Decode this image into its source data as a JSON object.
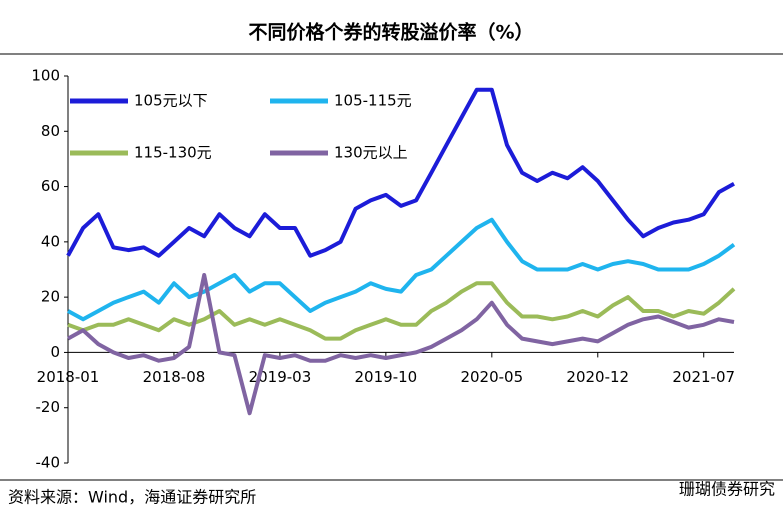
{
  "chart_data": {
    "type": "line",
    "title": "不同价格个券的转股溢价率（%）",
    "source": "资料来源：Wind，海通证券研究所",
    "watermark": "珊瑚债券研究",
    "categories": [
      "2018-01",
      null,
      null,
      null,
      null,
      null,
      null,
      "2018-08",
      null,
      null,
      null,
      null,
      null,
      null,
      "2019-03",
      null,
      null,
      null,
      null,
      null,
      null,
      "2019-10",
      null,
      null,
      null,
      null,
      null,
      null,
      "2020-05",
      null,
      null,
      null,
      null,
      null,
      null,
      "2020-12",
      null,
      null,
      null,
      null,
      null,
      null,
      "2021-07",
      null,
      null
    ],
    "series": [
      {
        "name": "105元以下",
        "color": "#1c1cd8",
        "values": [
          35,
          45,
          50,
          38,
          37,
          38,
          35,
          40,
          45,
          42,
          50,
          45,
          42,
          50,
          45,
          45,
          35,
          37,
          40,
          52,
          55,
          57,
          53,
          55,
          65,
          75,
          85,
          95,
          95,
          75,
          65,
          62,
          65,
          63,
          67,
          62,
          55,
          48,
          42,
          45,
          47,
          48,
          50,
          58,
          61
        ]
      },
      {
        "name": "105-115元",
        "color": "#1fb4ee",
        "values": [
          15,
          12,
          15,
          18,
          20,
          22,
          18,
          25,
          20,
          22,
          25,
          28,
          22,
          25,
          25,
          20,
          15,
          18,
          20,
          22,
          25,
          23,
          22,
          28,
          30,
          35,
          40,
          45,
          48,
          40,
          33,
          30,
          30,
          30,
          32,
          30,
          32,
          33,
          32,
          30,
          30,
          30,
          32,
          35,
          39
        ]
      },
      {
        "name": "115-130元",
        "color": "#9bbb59",
        "values": [
          10,
          8,
          10,
          10,
          12,
          10,
          8,
          12,
          10,
          12,
          15,
          10,
          12,
          10,
          12,
          10,
          8,
          5,
          5,
          8,
          10,
          12,
          10,
          10,
          15,
          18,
          22,
          25,
          25,
          18,
          13,
          13,
          12,
          13,
          15,
          13,
          17,
          20,
          15,
          15,
          13,
          15,
          14,
          18,
          23
        ]
      },
      {
        "name": "130元以上",
        "color": "#8064a2",
        "values": [
          5,
          8,
          3,
          0,
          -2,
          -1,
          -3,
          -2,
          2,
          28,
          0,
          -1,
          -22,
          -1,
          -2,
          -1,
          -3,
          -3,
          -1,
          -2,
          -1,
          -2,
          -1,
          0,
          2,
          5,
          8,
          12,
          18,
          10,
          5,
          4,
          3,
          4,
          5,
          4,
          7,
          10,
          12,
          13,
          11,
          9,
          10,
          12,
          11
        ]
      }
    ],
    "ylim": [
      -40,
      100
    ],
    "yticks": [
      -40,
      -20,
      0,
      20,
      40,
      60,
      80,
      100
    ]
  }
}
